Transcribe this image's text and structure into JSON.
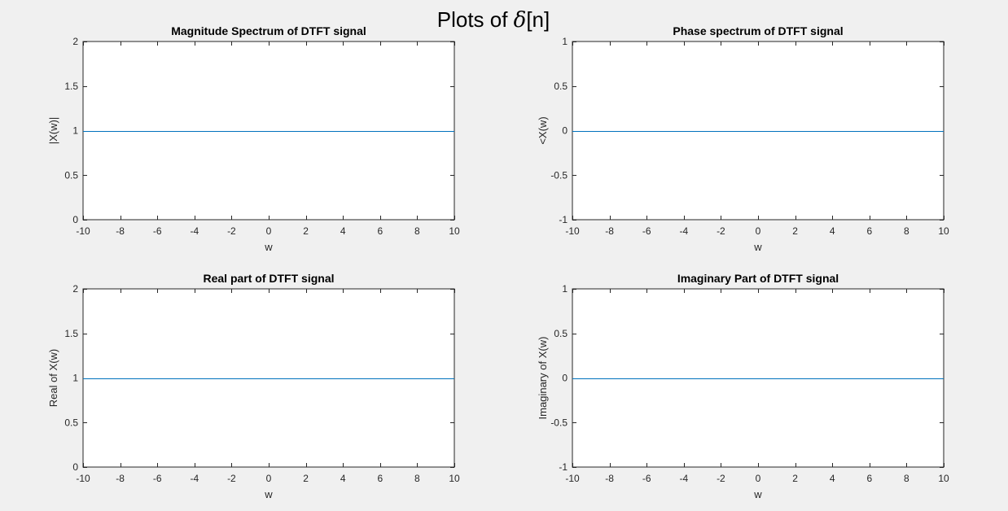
{
  "figure": {
    "title_prefix": "Plots of ",
    "title_symbol": "δ",
    "title_suffix": "[n]"
  },
  "chart_data": [
    {
      "type": "line",
      "title": "Magnitude Spectrum of DTFT signal",
      "xlabel": "w",
      "ylabel": "|X(w)|",
      "xlim": [
        -10,
        10
      ],
      "ylim": [
        0,
        2
      ],
      "xticks": [
        -10,
        -8,
        -6,
        -4,
        -2,
        0,
        2,
        4,
        6,
        8,
        10
      ],
      "yticks": [
        0,
        0.5,
        1,
        1.5,
        2
      ],
      "grid": false,
      "series": [
        {
          "x": [
            -10,
            10
          ],
          "y": [
            1,
            1
          ],
          "color": "#0072bd"
        }
      ]
    },
    {
      "type": "line",
      "title": "Phase spectrum of DTFT signal",
      "xlabel": "w",
      "ylabel": "<X(w)",
      "xlim": [
        -10,
        10
      ],
      "ylim": [
        -1,
        1
      ],
      "xticks": [
        -10,
        -8,
        -6,
        -4,
        -2,
        0,
        2,
        4,
        6,
        8,
        10
      ],
      "yticks": [
        -1,
        -0.5,
        0,
        0.5,
        1
      ],
      "grid": false,
      "series": [
        {
          "x": [
            -10,
            10
          ],
          "y": [
            0,
            0
          ],
          "color": "#0072bd"
        }
      ]
    },
    {
      "type": "line",
      "title": "Real part of DTFT signal",
      "xlabel": "w",
      "ylabel": "Real of X(w)",
      "xlim": [
        -10,
        10
      ],
      "ylim": [
        0,
        2
      ],
      "xticks": [
        -10,
        -8,
        -6,
        -4,
        -2,
        0,
        2,
        4,
        6,
        8,
        10
      ],
      "yticks": [
        0,
        0.5,
        1,
        1.5,
        2
      ],
      "grid": false,
      "series": [
        {
          "x": [
            -10,
            10
          ],
          "y": [
            1,
            1
          ],
          "color": "#0072bd"
        }
      ]
    },
    {
      "type": "line",
      "title": "Imaginary Part of DTFT signal",
      "xlabel": "w",
      "ylabel": "Imaginary of X(w)",
      "xlim": [
        -10,
        10
      ],
      "ylim": [
        -1,
        1
      ],
      "xticks": [
        -10,
        -8,
        -6,
        -4,
        -2,
        0,
        2,
        4,
        6,
        8,
        10
      ],
      "yticks": [
        -1,
        -0.5,
        0,
        0.5,
        1
      ],
      "grid": false,
      "series": [
        {
          "x": [
            -10,
            10
          ],
          "y": [
            0,
            0
          ],
          "color": "#0072bd"
        }
      ]
    }
  ]
}
